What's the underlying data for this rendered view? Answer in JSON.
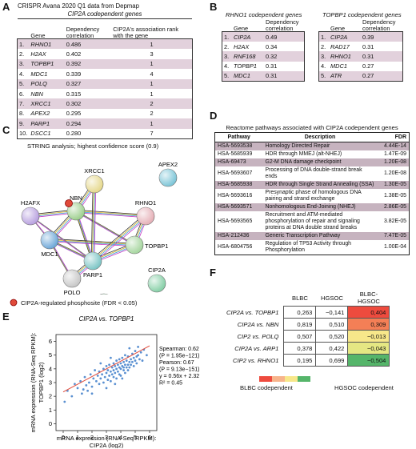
{
  "panelA": {
    "letter": "A",
    "title": "CRISPR Avana 2020 Q1 data from Depmap",
    "subtitle": "CIP2A codependent genes",
    "headers": [
      "Gene",
      "Dependency correlation",
      "CIP2A's association rank with the gene"
    ],
    "rows": [
      {
        "n": "1.",
        "gene": "RHNO1",
        "corr": "0.486",
        "rank": "1"
      },
      {
        "n": "2.",
        "gene": "H2AX",
        "corr": "0.402",
        "rank": "3"
      },
      {
        "n": "3.",
        "gene": "TOPBP1",
        "corr": "0.392",
        "rank": "1"
      },
      {
        "n": "4.",
        "gene": "MDC1",
        "corr": "0.339",
        "rank": "4"
      },
      {
        "n": "5.",
        "gene": "POLQ",
        "corr": "0.327",
        "rank": "1"
      },
      {
        "n": "6.",
        "gene": "NBN",
        "corr": "0.315",
        "rank": "1"
      },
      {
        "n": "7.",
        "gene": "XRCC1",
        "corr": "0.302",
        "rank": "2"
      },
      {
        "n": "8.",
        "gene": "APEX2",
        "corr": "0.295",
        "rank": "2"
      },
      {
        "n": "9.",
        "gene": "PARP1",
        "corr": "0.294",
        "rank": "1"
      },
      {
        "n": "10.",
        "gene": "DSCC1",
        "corr": "0.280",
        "rank": "7"
      }
    ]
  },
  "panelB": {
    "letter": "B",
    "left": {
      "title": "RHNO1 codependent genes",
      "headers": [
        "Gene",
        "Dependency correlation"
      ],
      "rows": [
        {
          "n": "1.",
          "gene": "CIP2A",
          "corr": "0.49"
        },
        {
          "n": "2.",
          "gene": "H2AX",
          "corr": "0.34"
        },
        {
          "n": "3.",
          "gene": "RNF168",
          "corr": "0.32"
        },
        {
          "n": "4.",
          "gene": "TOPBP1",
          "corr": "0.31"
        },
        {
          "n": "5.",
          "gene": "MDC1",
          "corr": "0.31"
        }
      ]
    },
    "right": {
      "title": "TOPBP1 codependent genes",
      "headers": [
        "Gene",
        "Dependency correlation"
      ],
      "rows": [
        {
          "n": "1.",
          "gene": "CIP2A",
          "corr": "0.39"
        },
        {
          "n": "2.",
          "gene": "RAD17",
          "corr": "0.31"
        },
        {
          "n": "3.",
          "gene": "RHNO1",
          "corr": "0.31"
        },
        {
          "n": "4.",
          "gene": "MDC1",
          "corr": "0.27"
        },
        {
          "n": "5.",
          "gene": "ATR",
          "corr": "0.27"
        }
      ]
    }
  },
  "panelC": {
    "letter": "C",
    "title": "STRING analysis; highest confidence score (0.9)",
    "nodes": [
      "XRCC1",
      "APEX2",
      "H2AFX",
      "NBN",
      "RHNO1",
      "MDC1",
      "TOPBP1",
      "PARP1",
      "CIP2A",
      "POLQ",
      "DSCC1"
    ],
    "legend": "CIP2A-regulated phosphosite (FDR < 0.05)",
    "colors": {
      "phosphosite": "#e04a3a"
    }
  },
  "panelD": {
    "letter": "D",
    "title": "Reactome pathways associated with CIP2A codependent genes",
    "headers": [
      "Pathway",
      "Description",
      "FDR"
    ],
    "rows": [
      {
        "id": "HSA-5693538",
        "desc": "Homology Directed Repair",
        "fdr": "4.44E-14"
      },
      {
        "id": "HSA-5685939",
        "desc": "HDR through MMEJ (alt-NHEJ)",
        "fdr": "1.47E-09"
      },
      {
        "id": "HSA-69473",
        "desc": "G2-M DNA damage checkpoint",
        "fdr": "1.20E-08"
      },
      {
        "id": "HSA-5693607",
        "desc": "Processing of DNA double-strand break ends",
        "fdr": "1.20E-08"
      },
      {
        "id": "HSA-5685938",
        "desc": "HDR through Single Strand Annealing (SSA)",
        "fdr": "1.30E-05"
      },
      {
        "id": "HSA-5693616",
        "desc": "Presynaptic phase of homologous DNA pairing and strand exchange",
        "fdr": "1.38E-05"
      },
      {
        "id": "HSA-5693571",
        "desc": "Nonhomologous End-Joining (NHEJ)",
        "fdr": "2.86E-05"
      },
      {
        "id": "HSA-5693565",
        "desc": "Recruitment and ATM-mediated phosphorylation of repair and signaling proteins at DNA double strand breaks",
        "fdr": "3.82E-05"
      },
      {
        "id": "HSA-212436",
        "desc": "Generic Transcription Pathway",
        "fdr": "7.47E-05"
      },
      {
        "id": "HSA-6804756",
        "desc": "Regulation of TP53 Activity through Phosphorylation",
        "fdr": "1.00E-04"
      }
    ]
  },
  "panelE": {
    "letter": "E",
    "title": "CIP2A vs. TOPBP1",
    "stats": [
      "Spearman: 0.62",
      "(P = 1.95e−121)",
      "Pearson: 0.67",
      "(P = 9.13e−151)",
      "y = 0.56x + 2.32",
      "R² = 0.45"
    ],
    "ylabel_lines": [
      "mRNA expression (RNA-Seq RPKM):",
      "TOPBP1 (log2)"
    ],
    "xlabel_lines": [
      "mRNA expression (RNA-Seq RPKM):",
      "CIP2A (log2)"
    ],
    "colors": {
      "points": "#3d7cc9",
      "fit": "#e04a3a"
    }
  },
  "chart_data": {
    "type": "scatter",
    "title": "CIP2A vs. TOPBP1",
    "xlabel": "mRNA expression (RNA-Seq RPKM): CIP2A (log2)",
    "ylabel": "mRNA expression (RNA-Seq RPKM): TOPBP1 (log2)",
    "xlim": [
      -0.5,
      6.5
    ],
    "ylim": [
      -0.5,
      6.5
    ],
    "xticks": [
      "0",
      "1",
      "2",
      "3",
      "4",
      "5",
      "6"
    ],
    "yticks": [
      "0",
      "1",
      "2",
      "3",
      "4",
      "5",
      "6"
    ],
    "fit": {
      "slope": 0.56,
      "intercept": 2.32,
      "r2": 0.45
    },
    "spearman": 0.62,
    "pearson": 0.67,
    "points": [
      [
        0.1,
        1.6
      ],
      [
        0.3,
        2.4
      ],
      [
        0.6,
        2.0
      ],
      [
        0.8,
        2.9
      ],
      [
        1.0,
        2.6
      ],
      [
        1.2,
        3.1
      ],
      [
        1.3,
        2.2
      ],
      [
        1.5,
        3.4
      ],
      [
        1.6,
        2.8
      ],
      [
        1.8,
        3.0
      ],
      [
        1.9,
        3.6
      ],
      [
        2.0,
        2.7
      ],
      [
        2.1,
        3.3
      ],
      [
        2.2,
        3.9
      ],
      [
        2.3,
        3.1
      ],
      [
        2.4,
        3.5
      ],
      [
        2.5,
        2.9
      ],
      [
        2.5,
        3.8
      ],
      [
        2.6,
        3.3
      ],
      [
        2.7,
        3.6
      ],
      [
        2.8,
        4.0
      ],
      [
        2.8,
        3.0
      ],
      [
        2.9,
        3.4
      ],
      [
        3.0,
        3.7
      ],
      [
        3.0,
        4.2
      ],
      [
        3.1,
        3.2
      ],
      [
        3.1,
        3.9
      ],
      [
        3.2,
        3.5
      ],
      [
        3.2,
        4.3
      ],
      [
        3.3,
        3.8
      ],
      [
        3.3,
        3.1
      ],
      [
        3.4,
        4.1
      ],
      [
        3.4,
        3.6
      ],
      [
        3.5,
        4.4
      ],
      [
        3.5,
        3.4
      ],
      [
        3.5,
        3.9
      ],
      [
        3.6,
        4.2
      ],
      [
        3.6,
        3.7
      ],
      [
        3.7,
        4.0
      ],
      [
        3.7,
        4.6
      ],
      [
        3.7,
        3.3
      ],
      [
        3.8,
        3.8
      ],
      [
        3.8,
        4.3
      ],
      [
        3.9,
        4.1
      ],
      [
        3.9,
        3.6
      ],
      [
        3.9,
        4.7
      ],
      [
        4.0,
        4.0
      ],
      [
        4.0,
        4.4
      ],
      [
        4.0,
        3.5
      ],
      [
        4.1,
        4.2
      ],
      [
        4.1,
        4.8
      ],
      [
        4.2,
        3.9
      ],
      [
        4.2,
        4.5
      ],
      [
        4.2,
        4.1
      ],
      [
        4.3,
        4.3
      ],
      [
        4.3,
        3.7
      ],
      [
        4.3,
        5.0
      ],
      [
        4.4,
        4.1
      ],
      [
        4.4,
        4.6
      ],
      [
        4.5,
        4.3
      ],
      [
        4.5,
        3.9
      ],
      [
        4.5,
        4.9
      ],
      [
        4.6,
        4.5
      ],
      [
        4.6,
        4.1
      ],
      [
        4.7,
        4.7
      ],
      [
        4.7,
        4.3
      ],
      [
        4.8,
        4.5
      ],
      [
        4.8,
        5.1
      ],
      [
        4.9,
        4.2
      ],
      [
        4.9,
        4.8
      ],
      [
        5.0,
        4.6
      ],
      [
        5.0,
        5.3
      ],
      [
        5.1,
        4.4
      ],
      [
        5.1,
        4.9
      ],
      [
        5.2,
        5.0
      ],
      [
        5.3,
        4.7
      ],
      [
        5.4,
        5.2
      ],
      [
        5.5,
        4.6
      ],
      [
        5.6,
        5.4
      ],
      [
        5.8,
        5.0
      ],
      [
        3.0,
        2.6
      ],
      [
        3.6,
        2.9
      ],
      [
        4.1,
        3.3
      ],
      [
        2.6,
        4.4
      ],
      [
        3.3,
        4.8
      ],
      [
        1.4,
        2.5
      ],
      [
        2.0,
        2.2
      ],
      [
        4.6,
        5.5
      ],
      [
        5.2,
        5.6
      ],
      [
        1.7,
        2.4
      ]
    ]
  },
  "panelF": {
    "letter": "F",
    "headers": [
      "BLBC",
      "HGSOC",
      "BLBC-HGSOC"
    ],
    "rows": [
      {
        "label": "CIP2A vs. TOPBP1",
        "blbc": "0,263",
        "hgsoc": "−0,141",
        "diff": "0,404",
        "color": "#ee4b3e"
      },
      {
        "label": "CIP2A vs. NBN",
        "blbc": "0,819",
        "hgsoc": "0,510",
        "diff": "0,309",
        "color": "#f47f56"
      },
      {
        "label": "CIP2 vs. POLQ",
        "blbc": "0,507",
        "hgsoc": "0,520",
        "diff": "−0,013",
        "color": "#f7e78a"
      },
      {
        "label": "CIP2A vs. ARP1",
        "blbc": "0,378",
        "hgsoc": "0,422",
        "diff": "−0,043",
        "color": "#e5e783"
      },
      {
        "label": "CIP2 vs. RHNO1",
        "blbc": "0,195",
        "hgsoc": "0,699",
        "diff": "−0,504",
        "color": "#55b56a"
      }
    ],
    "legend_left": "BLBC codependent",
    "legend_right": "HGSOC codependent",
    "legend_colors": [
      "#ee4b3e",
      "#f7b48b",
      "#f7e78a",
      "#55b56a"
    ]
  }
}
